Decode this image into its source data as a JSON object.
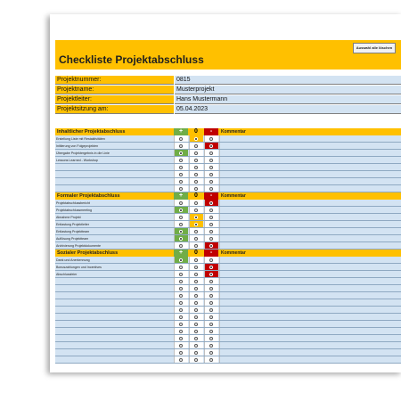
{
  "title": "Checkliste Projektabschluss",
  "reset_button_label": "Auswahl alle löschen",
  "info": [
    {
      "label": "Projektnummer:",
      "value": "0815"
    },
    {
      "label": "Projektname:",
      "value": "Musterprojekt"
    },
    {
      "label": "Projektleiter:",
      "value": "Hans Mustermann"
    },
    {
      "label": "Projektsitzung am:",
      "value": "05.04.2023"
    }
  ],
  "column_headers": {
    "plus": "+",
    "zero": "0",
    "minus": "-",
    "comment": "Kommentar"
  },
  "colors": {
    "accent_yellow": "#ffc000",
    "positive_green": "#70ad47",
    "negative_red": "#c00000",
    "row_blue": "#d3e3f2"
  },
  "sections": [
    {
      "title": "Inhaltlicher Projektabschluss",
      "rows": [
        {
          "text": "Erstellung Liste mit Restaktivitäten",
          "selected": 2
        },
        {
          "text": "Initiierung von Folgeprojekten",
          "selected": 3
        },
        {
          "text": "Übergabe Projektergebnis in die Linie",
          "selected": 1
        },
        {
          "text": "Lessons Learned - Workshop",
          "selected": 0
        },
        {
          "text": "",
          "selected": 0
        },
        {
          "text": "",
          "selected": 0
        },
        {
          "text": "",
          "selected": 0
        },
        {
          "text": "",
          "selected": 0
        }
      ]
    },
    {
      "title": "Formaler Projektabschluss",
      "rows": [
        {
          "text": "Projektabschlussbericht",
          "selected": 3
        },
        {
          "text": "Projektabschlussmeeting",
          "selected": 1
        },
        {
          "text": "Abnahme Projekt",
          "selected": 2
        },
        {
          "text": "Entlastung Projektleiter",
          "selected": 2
        },
        {
          "text": "Entlastung Projektteam",
          "selected": 1
        },
        {
          "text": "Auflösung Projektteam",
          "selected": 1
        },
        {
          "text": "Archivierung Projektdokumente",
          "selected": 3
        }
      ]
    },
    {
      "title": "Sozialer Projektabschluss",
      "rows": [
        {
          "text": "Dank und Anerkennung",
          "selected": 1
        },
        {
          "text": "Bonuszahlungen und Incentives",
          "selected": 3
        },
        {
          "text": "Abschlussfeier",
          "selected": 3
        },
        {
          "text": "",
          "selected": 0
        },
        {
          "text": "",
          "selected": 0
        },
        {
          "text": "",
          "selected": 0
        },
        {
          "text": "",
          "selected": 0
        },
        {
          "text": "",
          "selected": 0
        },
        {
          "text": "",
          "selected": 0
        },
        {
          "text": "",
          "selected": 0
        },
        {
          "text": "",
          "selected": 0
        },
        {
          "text": "",
          "selected": 0
        },
        {
          "text": "",
          "selected": 0
        },
        {
          "text": "",
          "selected": 0
        },
        {
          "text": "",
          "selected": 0
        }
      ]
    }
  ]
}
